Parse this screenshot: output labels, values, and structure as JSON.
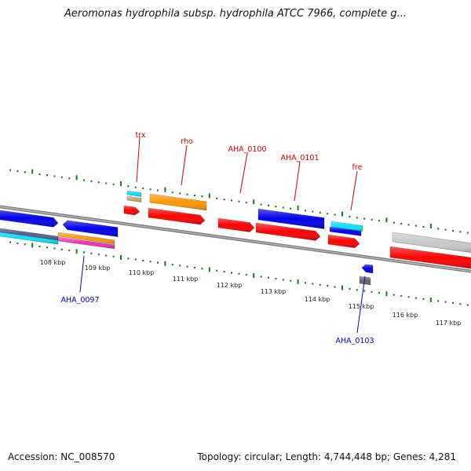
{
  "title": "Aeromonas hydrophila subsp. hydrophila ATCC 7966, complete g...",
  "accession": "Accession: NC_008570",
  "summary": "Topology: circular; Length: 4,744,448 bp; Genes: 4,281",
  "colors": {
    "backbone": "#808080",
    "tick": "#1a7a1a",
    "label_top": "#cc0000",
    "label_bottom": "#0000cc",
    "red": "#ff0000",
    "blue": "#0000ee",
    "orange": "#ff9900",
    "cyan": "#00e5ff",
    "tan": "#c2a86a",
    "gray_light": "#c8c8c8",
    "gray_dark": "#6a6a6a",
    "slate": "#5b5e8e",
    "magenta": "#ee33bb"
  },
  "map": {
    "kbp_labels": [
      "108 kbp",
      "109 kbp",
      "110 kbp",
      "111 kbp",
      "112 kbp",
      "113 kbp",
      "114 kbp",
      "115 kbp",
      "116 kbp",
      "117 kbp"
    ],
    "top_labels": [
      {
        "text": "trx",
        "color": "red"
      },
      {
        "text": "rho",
        "color": "red"
      },
      {
        "text": "AHA_0100",
        "color": "red"
      },
      {
        "text": "AHA_0101",
        "color": "red"
      },
      {
        "text": "fre",
        "color": "red"
      }
    ],
    "bottom_labels": [
      {
        "text": "AHA_0097",
        "color": "blue"
      },
      {
        "text": "AHA_0103",
        "color": "blue"
      }
    ],
    "features": [
      {
        "color": "blue",
        "strand": "+",
        "icon": "forward-arrow"
      },
      {
        "color": "blue",
        "strand": "-",
        "icon": "reverse-arrow"
      },
      {
        "color": "slate",
        "strand": "+",
        "icon": "bar"
      },
      {
        "color": "cyan",
        "strand": "+",
        "icon": "bar"
      },
      {
        "color": "orange",
        "strand": "+",
        "icon": "bar"
      },
      {
        "color": "magenta",
        "strand": "+",
        "icon": "bar"
      },
      {
        "color": "cyan",
        "strand": "+",
        "icon": "bar"
      },
      {
        "color": "tan",
        "strand": "+",
        "icon": "bar"
      },
      {
        "color": "red",
        "strand": "+",
        "icon": "forward-arrow"
      },
      {
        "color": "orange",
        "strand": "+",
        "icon": "bar"
      },
      {
        "color": "red",
        "strand": "+",
        "icon": "forward-arrow"
      },
      {
        "color": "red",
        "strand": "+",
        "icon": "forward-arrow"
      },
      {
        "color": "blue",
        "strand": "+",
        "icon": "bar"
      },
      {
        "color": "red",
        "strand": "+",
        "icon": "forward-arrow"
      },
      {
        "color": "cyan",
        "strand": "+",
        "icon": "bar"
      },
      {
        "color": "blue",
        "strand": "+",
        "icon": "bar"
      },
      {
        "color": "red",
        "strand": "+",
        "icon": "forward-arrow"
      },
      {
        "color": "blue",
        "strand": "-",
        "icon": "reverse-arrow"
      },
      {
        "color": "gray_dark",
        "strand": "-",
        "icon": "bar"
      },
      {
        "color": "gray_light",
        "strand": "+",
        "icon": "bar"
      },
      {
        "color": "red",
        "strand": "+",
        "icon": "forward-arrow"
      }
    ]
  }
}
